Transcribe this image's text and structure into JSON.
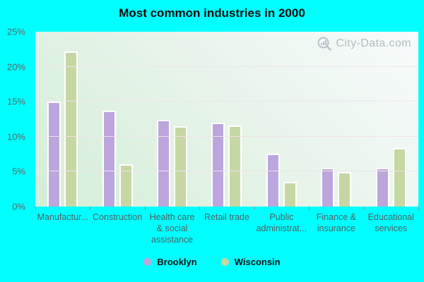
{
  "watermark": {
    "text": "City-Data.com"
  },
  "chart_data": {
    "type": "bar",
    "title": "Most common industries in 2000",
    "categories": [
      "Manufactur...",
      "Construction",
      "Health care\n& social\nassistance",
      "Retail trade",
      "Public\nadministrat...",
      "Finance &\ninsurance",
      "Educational\nservices"
    ],
    "series": [
      {
        "name": "Brooklyn",
        "color": "#bca6dc",
        "values": [
          15.0,
          13.7,
          12.4,
          12.0,
          7.6,
          5.5,
          5.5
        ]
      },
      {
        "name": "Wisconsin",
        "color": "#c6d7a3",
        "values": [
          22.2,
          6.0,
          11.5,
          11.6,
          3.5,
          4.9,
          8.4
        ]
      }
    ],
    "xlabel": "",
    "ylabel": "",
    "ylim": [
      0,
      25
    ],
    "ytick_step": 5,
    "ytick_suffix": "%",
    "grid": true,
    "legend_position": "bottom",
    "colors": {
      "background": "#00ffff",
      "plot_top": "#f8fbfc",
      "plot_bottom": "#d3eed7",
      "gridline": "#f0e3ed",
      "bar_border": "#ffffff",
      "axis_text": "#54696a",
      "title_text": "#0b0b0b"
    }
  }
}
